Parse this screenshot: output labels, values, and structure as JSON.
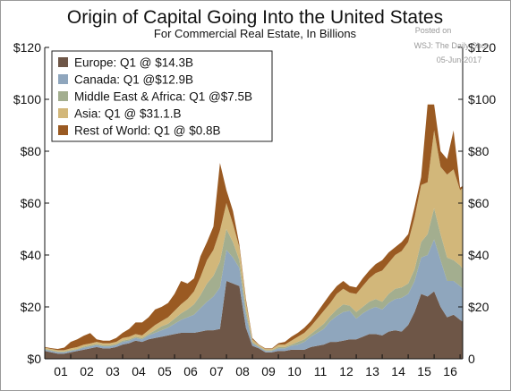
{
  "chart_data": {
    "type": "area",
    "stacked": true,
    "title": "Origin of Capital Going Into the United States",
    "subtitle": "For Commercial Real Estate, In Billions",
    "watermark": [
      "Posted on",
      "WSJ: The Daily Shot",
      "05-Jun-2017"
    ],
    "ylim": [
      0,
      120
    ],
    "yticks": [
      "$0",
      "$20",
      "$40",
      "$60",
      "$80",
      "$100",
      "$120"
    ],
    "yticks_right": [
      "0",
      "$20",
      "$40",
      "$60",
      "$80",
      "$100",
      "$120"
    ],
    "xlim": [
      2001,
      2017.1
    ],
    "xticks": [
      "01",
      "02",
      "03",
      "04",
      "05",
      "06",
      "07",
      "08",
      "09",
      "10",
      "11",
      "12",
      "13",
      "14",
      "15",
      "16"
    ],
    "grid": false,
    "legend_position": "top-left",
    "x": [
      2001.0,
      2001.25,
      2001.5,
      2001.75,
      2002.0,
      2002.25,
      2002.5,
      2002.75,
      2003.0,
      2003.25,
      2003.5,
      2003.75,
      2004.0,
      2004.25,
      2004.5,
      2004.75,
      2005.0,
      2005.25,
      2005.5,
      2005.75,
      2006.0,
      2006.25,
      2006.5,
      2006.75,
      2007.0,
      2007.25,
      2007.5,
      2007.75,
      2008.0,
      2008.25,
      2008.5,
      2008.75,
      2009.0,
      2009.25,
      2009.5,
      2009.75,
      2010.0,
      2010.25,
      2010.5,
      2010.75,
      2011.0,
      2011.25,
      2011.5,
      2011.75,
      2012.0,
      2012.25,
      2012.5,
      2012.75,
      2013.0,
      2013.25,
      2013.5,
      2013.75,
      2014.0,
      2014.25,
      2014.5,
      2014.75,
      2015.0,
      2015.25,
      2015.5,
      2015.75,
      2016.0,
      2016.25,
      2016.5,
      2016.75,
      2017.0,
      2017.1
    ],
    "series": [
      {
        "name": "Europe: Q1 @ $14.3B",
        "color": "#6e5647",
        "values": [
          3.0,
          2.5,
          2.0,
          2.0,
          2.5,
          3.0,
          3.5,
          4.0,
          4.5,
          4.0,
          4.0,
          4.5,
          5.5,
          6.0,
          7.0,
          6.5,
          7.5,
          8.0,
          8.5,
          9.0,
          9.5,
          10.0,
          10.0,
          10.0,
          10.5,
          11.0,
          11.0,
          11.5,
          30.0,
          29.0,
          28.0,
          12.0,
          5.0,
          4.0,
          2.5,
          2.5,
          3.0,
          3.0,
          3.5,
          3.5,
          3.5,
          4.5,
          5.0,
          5.5,
          6.5,
          6.5,
          7.0,
          7.5,
          7.5,
          8.5,
          9.5,
          9.5,
          9.0,
          10.5,
          11.0,
          10.5,
          13.0,
          18.0,
          25.0,
          24.0,
          26.0,
          20.0,
          16.0,
          17.0,
          15.0,
          14.3
        ]
      },
      {
        "name": "Canada: Q1 @$12.9B",
        "color": "#8fa6bd",
        "values": [
          0.5,
          0.5,
          0.5,
          0.5,
          0.5,
          0.5,
          0.8,
          0.8,
          0.8,
          0.8,
          0.8,
          0.8,
          1.0,
          1.0,
          1.0,
          1.0,
          1.5,
          2.0,
          2.5,
          3.0,
          4.0,
          5.0,
          6.0,
          7.0,
          9.0,
          11.0,
          13.0,
          16.0,
          12.0,
          10.0,
          7.0,
          5.0,
          1.0,
          0.5,
          0.5,
          0.5,
          1.0,
          1.0,
          1.5,
          2.0,
          3.0,
          4.0,
          5.0,
          6.0,
          8.0,
          10.0,
          11.0,
          11.0,
          8.0,
          9.0,
          9.5,
          10.5,
          10.0,
          11.0,
          12.0,
          13.0,
          12.0,
          12.0,
          14.0,
          16.0,
          20.0,
          18.0,
          14.0,
          13.0,
          13.0,
          12.9
        ]
      },
      {
        "name": "Middle East & Africa: Q1 @$7.5B",
        "color": "#a3ae8f",
        "values": [
          0.3,
          0.3,
          0.3,
          0.3,
          0.3,
          0.3,
          0.4,
          0.4,
          0.4,
          0.4,
          0.4,
          0.4,
          0.5,
          0.5,
          0.5,
          0.5,
          0.5,
          1.0,
          1.5,
          1.5,
          2.0,
          2.5,
          3.0,
          4.0,
          5.0,
          7.0,
          8.0,
          10.0,
          8.0,
          6.0,
          3.0,
          2.0,
          0.5,
          0.3,
          0.3,
          0.3,
          0.5,
          0.5,
          0.5,
          1.0,
          1.0,
          1.0,
          1.5,
          2.0,
          2.0,
          2.5,
          3.0,
          2.0,
          2.5,
          2.5,
          3.0,
          3.0,
          3.0,
          3.5,
          4.0,
          4.0,
          4.0,
          4.5,
          6.0,
          8.0,
          12.0,
          10.0,
          9.0,
          8.0,
          8.0,
          7.5
        ]
      },
      {
        "name": "Asia: Q1 @ $31.1.B",
        "color": "#d2b77a",
        "values": [
          0.5,
          0.5,
          0.5,
          0.5,
          0.7,
          0.7,
          0.7,
          0.7,
          0.8,
          0.8,
          0.8,
          0.8,
          1.0,
          1.0,
          1.0,
          1.0,
          1.5,
          2.0,
          2.0,
          2.5,
          3.0,
          3.5,
          4.0,
          5.0,
          7.0,
          9.0,
          10.0,
          12.0,
          10.0,
          7.0,
          5.0,
          3.0,
          1.0,
          0.5,
          0.5,
          0.5,
          1.0,
          1.0,
          1.5,
          2.0,
          2.5,
          3.0,
          4.0,
          5.0,
          5.0,
          6.0,
          6.0,
          5.0,
          7.0,
          8.0,
          9.0,
          10.0,
          12.0,
          12.0,
          13.0,
          14.0,
          16.0,
          20.0,
          22.0,
          20.0,
          30.0,
          26.0,
          32.0,
          35.0,
          29.0,
          31.1
        ]
      },
      {
        "name": "Rest of World: Q1 @ $0.8B",
        "color": "#9a5a22",
        "values": [
          0.3,
          0.3,
          0.5,
          1.0,
          2.5,
          3.0,
          3.5,
          4.0,
          1.0,
          1.0,
          1.0,
          1.5,
          2.0,
          3.0,
          4.5,
          5.0,
          5.0,
          6.0,
          5.5,
          5.5,
          6.5,
          9.0,
          6.0,
          5.0,
          8.0,
          7.0,
          9.0,
          26.0,
          5.0,
          5.0,
          1.0,
          1.0,
          0.5,
          0.2,
          0.2,
          0.2,
          0.5,
          1.0,
          1.5,
          1.5,
          2.0,
          2.0,
          2.5,
          3.0,
          3.5,
          3.0,
          3.0,
          2.5,
          2.5,
          3.0,
          3.0,
          3.5,
          4.0,
          4.0,
          3.0,
          3.5,
          3.0,
          4.0,
          3.0,
          30.0,
          10.0,
          6.0,
          6.0,
          15.0,
          1.0,
          0.8
        ]
      }
    ]
  }
}
